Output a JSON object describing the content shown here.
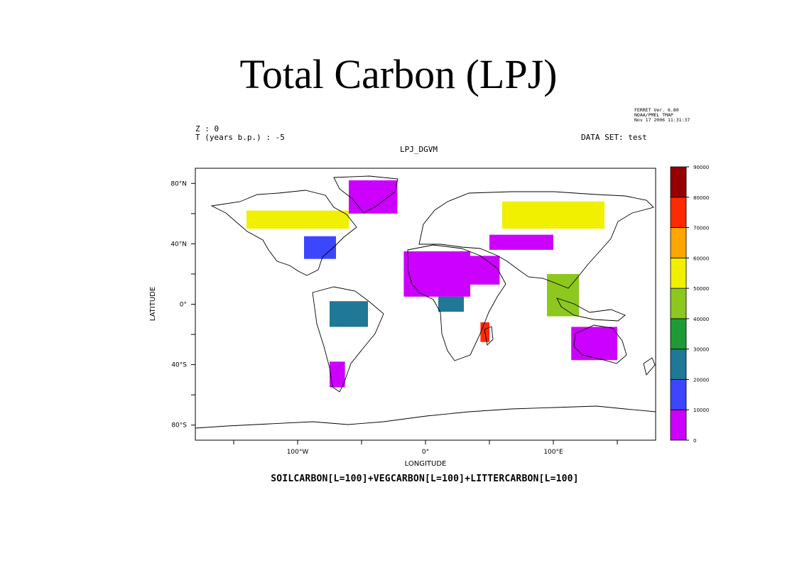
{
  "slide": {
    "title": "Total Carbon (LPJ)"
  },
  "header": {
    "z_label": "Z : 0",
    "t_label": "T (years b.p.) : -5",
    "dataset_label": "DATA SET: test",
    "plot_title": "LPJ_DGVM",
    "ferret_stamp": [
      "FERRET Ver. 6.80",
      "NOAA/PMEL TMAP",
      "Nov 17 2006 11:31:37"
    ]
  },
  "footer": {
    "formula": "SOILCARBON[L=100]+VEGCARBON[L=100]+LITTERCARBON[L=100]"
  },
  "chart_data": {
    "type": "heatmap",
    "title": "LPJ_DGVM",
    "xlabel": "LONGITUDE",
    "ylabel": "LATITUDE",
    "xlim": [
      -180,
      180
    ],
    "ylim": [
      -90,
      90
    ],
    "x_ticks": [
      {
        "value": -100,
        "label": "100°W"
      },
      {
        "value": 0,
        "label": "0°"
      },
      {
        "value": 100,
        "label": "100°E"
      }
    ],
    "y_ticks": [
      {
        "value": 80,
        "label": "80°N"
      },
      {
        "value": 40,
        "label": "40°N"
      },
      {
        "value": 0,
        "label": "0°"
      },
      {
        "value": -40,
        "label": "40°S"
      },
      {
        "value": -80,
        "label": "80°S"
      }
    ],
    "colorbar": {
      "levels": [
        0,
        10000,
        20000,
        30000,
        40000,
        50000,
        60000,
        70000,
        80000,
        90000
      ],
      "colors": [
        "#cc00ff",
        "#3c46ff",
        "#1e7896",
        "#1f9b36",
        "#8cc81e",
        "#f0f000",
        "#ffa500",
        "#ff2a00",
        "#960000"
      ]
    },
    "regions": [
      {
        "name": "sahara",
        "lon": [
          -17,
          35
        ],
        "lat": [
          5,
          35
        ],
        "level": 0
      },
      {
        "name": "arabia",
        "lon": [
          35,
          58
        ],
        "lat": [
          13,
          32
        ],
        "level": 0
      },
      {
        "name": "central-asia-desert",
        "lon": [
          50,
          100
        ],
        "lat": [
          36,
          46
        ],
        "level": 0
      },
      {
        "name": "australia",
        "lon": [
          114,
          150
        ],
        "lat": [
          -37,
          -15
        ],
        "level": 0
      },
      {
        "name": "greenland",
        "lon": [
          -60,
          -22
        ],
        "lat": [
          60,
          82
        ],
        "level": 0
      },
      {
        "name": "siberia",
        "lon": [
          60,
          140
        ],
        "lat": [
          50,
          68
        ],
        "level": 5
      },
      {
        "name": "canada-boreal",
        "lon": [
          -140,
          -60
        ],
        "lat": [
          50,
          62
        ],
        "level": 5
      },
      {
        "name": "amazon",
        "lon": [
          -75,
          -45
        ],
        "lat": [
          -15,
          2
        ],
        "level": 2
      },
      {
        "name": "congo",
        "lon": [
          10,
          30
        ],
        "lat": [
          -5,
          5
        ],
        "level": 2
      },
      {
        "name": "eastern-us",
        "lon": [
          -95,
          -70
        ],
        "lat": [
          30,
          45
        ],
        "level": 1
      },
      {
        "name": "southeast-asia",
        "lon": [
          95,
          120
        ],
        "lat": [
          -8,
          20
        ],
        "level": 4
      },
      {
        "name": "patagonia",
        "lon": [
          -75,
          -63
        ],
        "lat": [
          -55,
          -38
        ],
        "level": 0
      },
      {
        "name": "madagascar",
        "lon": [
          43,
          50
        ],
        "lat": [
          -25,
          -12
        ],
        "level": 7
      }
    ]
  }
}
